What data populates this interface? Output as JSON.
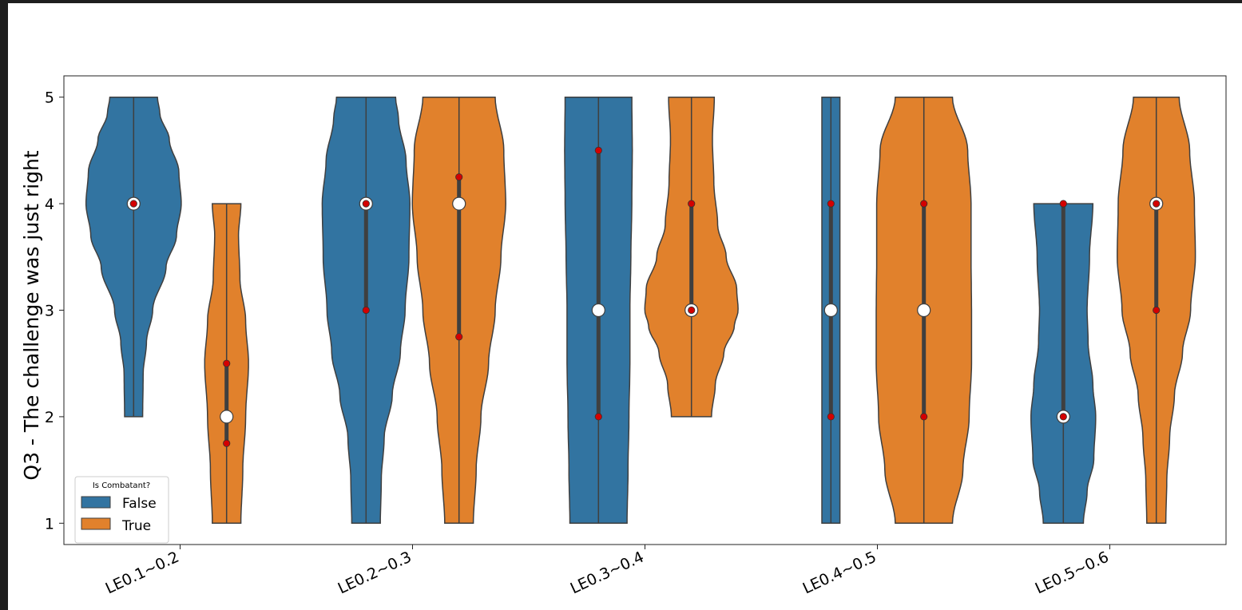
{
  "chart_data": {
    "type": "violin",
    "categories": [
      "LE0.1~0.2",
      "LE0.2~0.3",
      "LE0.3~0.4",
      "LE0.4~0.5",
      "LE0.5~0.6"
    ],
    "xlabel": "",
    "ylabel": "Q3 - The challenge was just right",
    "ylim": [
      0.8,
      5.2
    ],
    "yticks": [
      1,
      2,
      3,
      4,
      5
    ],
    "grid": false,
    "legend": {
      "title": "Is Combatant?",
      "placement": "bottom-left"
    },
    "colors": {
      "False": "#3274a1",
      "True": "#e1812c",
      "outline": "#3f3f3f",
      "marker": "#d40000"
    },
    "series": [
      {
        "name": "False",
        "violins": [
          {
            "min": 2,
            "max": 5,
            "median": 4,
            "q1": 4,
            "q3": 4,
            "markers": [
              4
            ],
            "profile": [
              [
                2,
                0.19
              ],
              [
                2.4,
                0.2
              ],
              [
                2.7,
                0.27
              ],
              [
                3,
                0.4
              ],
              [
                3.4,
                0.68
              ],
              [
                3.7,
                0.9
              ],
              [
                4,
                1.0
              ],
              [
                4.3,
                0.95
              ],
              [
                4.6,
                0.75
              ],
              [
                4.85,
                0.55
              ],
              [
                5,
                0.5
              ]
            ]
          },
          {
            "min": 1,
            "max": 5,
            "median": 4,
            "q1": 3,
            "q3": 4,
            "markers": [
              3,
              4
            ],
            "profile": [
              [
                1,
                0.3
              ],
              [
                1.4,
                0.32
              ],
              [
                1.8,
                0.38
              ],
              [
                2.2,
                0.55
              ],
              [
                2.6,
                0.72
              ],
              [
                3,
                0.82
              ],
              [
                3.5,
                0.9
              ],
              [
                4,
                0.92
              ],
              [
                4.4,
                0.84
              ],
              [
                4.8,
                0.68
              ],
              [
                5,
                0.62
              ]
            ]
          },
          {
            "min": 1,
            "max": 5,
            "median": 3,
            "q1": 2,
            "q3": 4.5,
            "markers": [
              2,
              4.5
            ],
            "profile": [
              [
                1,
                0.6
              ],
              [
                1.5,
                0.62
              ],
              [
                2,
                0.64
              ],
              [
                2.5,
                0.66
              ],
              [
                3,
                0.66
              ],
              [
                3.5,
                0.68
              ],
              [
                4,
                0.7
              ],
              [
                4.5,
                0.71
              ],
              [
                5,
                0.7
              ]
            ]
          },
          {
            "min": 1,
            "max": 5,
            "median": 3,
            "q1": 2,
            "q3": 4,
            "markers": [
              2,
              4
            ],
            "profile": [
              [
                1,
                0.19
              ],
              [
                2,
                0.19
              ],
              [
                3,
                0.19
              ],
              [
                4,
                0.19
              ],
              [
                5,
                0.19
              ]
            ]
          },
          {
            "min": 1,
            "max": 4,
            "median": 2,
            "q1": 2,
            "q3": 4,
            "markers": [
              2,
              4
            ],
            "profile": [
              [
                1,
                0.42
              ],
              [
                1.3,
                0.5
              ],
              [
                1.6,
                0.64
              ],
              [
                2,
                0.68
              ],
              [
                2.3,
                0.62
              ],
              [
                2.7,
                0.52
              ],
              [
                3,
                0.5
              ],
              [
                3.5,
                0.55
              ],
              [
                4,
                0.62
              ]
            ]
          }
        ]
      },
      {
        "name": "True",
        "violins": [
          {
            "min": 1,
            "max": 4,
            "median": 2,
            "q1": 1.75,
            "q3": 2.5,
            "markers": [
              1.75,
              2.5
            ],
            "profile": [
              [
                1,
                0.3
              ],
              [
                1.5,
                0.34
              ],
              [
                2,
                0.4
              ],
              [
                2.5,
                0.46
              ],
              [
                2.9,
                0.4
              ],
              [
                3.3,
                0.28
              ],
              [
                3.7,
                0.25
              ],
              [
                4,
                0.3
              ]
            ]
          },
          {
            "min": 1,
            "max": 5,
            "median": 4,
            "q1": 2.75,
            "q3": 4.25,
            "markers": [
              2.75,
              4.25
            ],
            "profile": [
              [
                1,
                0.3
              ],
              [
                1.5,
                0.36
              ],
              [
                2,
                0.46
              ],
              [
                2.5,
                0.62
              ],
              [
                3,
                0.76
              ],
              [
                3.5,
                0.88
              ],
              [
                4,
                0.98
              ],
              [
                4.5,
                0.94
              ],
              [
                5,
                0.76
              ]
            ]
          },
          {
            "min": 2,
            "max": 5,
            "median": 3,
            "q1": 3,
            "q3": 4,
            "markers": [
              3,
              4
            ],
            "profile": [
              [
                2,
                0.42
              ],
              [
                2.3,
                0.5
              ],
              [
                2.6,
                0.68
              ],
              [
                2.85,
                0.9
              ],
              [
                3,
                0.98
              ],
              [
                3.2,
                0.95
              ],
              [
                3.5,
                0.73
              ],
              [
                3.8,
                0.55
              ],
              [
                4.2,
                0.47
              ],
              [
                4.6,
                0.44
              ],
              [
                5,
                0.48
              ]
            ]
          },
          {
            "min": 1,
            "max": 5,
            "median": 3,
            "q1": 2,
            "q3": 4,
            "markers": [
              2,
              4
            ],
            "profile": [
              [
                1,
                0.6
              ],
              [
                1.5,
                0.82
              ],
              [
                2,
                0.95
              ],
              [
                2.5,
                1.0
              ],
              [
                3,
                1.0
              ],
              [
                3.5,
                0.99
              ],
              [
                4,
                0.99
              ],
              [
                4.5,
                0.92
              ],
              [
                5,
                0.6
              ]
            ]
          },
          {
            "min": 1,
            "max": 5,
            "median": 4,
            "q1": 3,
            "q3": 4,
            "markers": [
              3,
              4
            ],
            "profile": [
              [
                1,
                0.2
              ],
              [
                1.4,
                0.22
              ],
              [
                1.8,
                0.28
              ],
              [
                2.2,
                0.38
              ],
              [
                2.6,
                0.55
              ],
              [
                3,
                0.72
              ],
              [
                3.5,
                0.82
              ],
              [
                4,
                0.8
              ],
              [
                4.5,
                0.7
              ],
              [
                5,
                0.48
              ]
            ]
          }
        ]
      }
    ]
  }
}
